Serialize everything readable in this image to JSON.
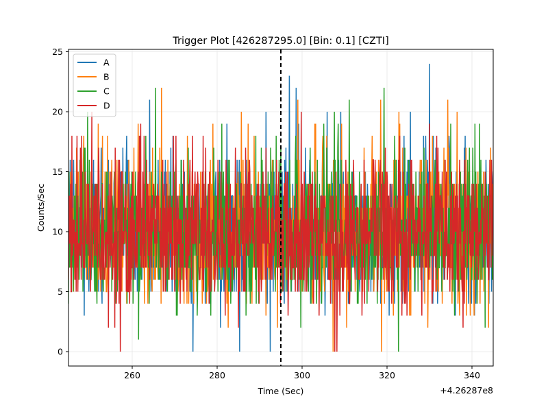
{
  "chart_data": {
    "type": "line",
    "title": "Trigger Plot [426287295.0] [Bin: 0.1] [CZTI]",
    "xlabel": "Time (Sec)",
    "ylabel": "Counts/Sec",
    "x_offset_label": "+4.26287e8",
    "xlim": [
      245,
      345
    ],
    "ylim": [
      -1.2,
      25.2
    ],
    "x_ticks": [
      260,
      280,
      300,
      320,
      340
    ],
    "y_ticks": [
      0,
      5,
      10,
      15,
      20,
      25
    ],
    "bin": 0.1,
    "grid": true,
    "legend_position": "top-left",
    "trigger_line_x": 295,
    "series_summary": "Four detector quadrant light curves sampled every 0.1 s, fluctuating around about 10 counts/sec (mostly between 4 and 17).",
    "series": [
      {
        "name": "A",
        "color": "#1f77b4",
        "mean": 10,
        "peaks": [
          {
            "x": 297.0,
            "y": 23
          },
          {
            "x": 330.0,
            "y": 24
          },
          {
            "x": 325.5,
            "y": 20
          }
        ],
        "dips": [
          {
            "x": 274.3,
            "y": 0
          },
          {
            "x": 285.3,
            "y": 0
          },
          {
            "x": 292.5,
            "y": 0
          }
        ]
      },
      {
        "name": "B",
        "color": "#ff7f0e",
        "mean": 10,
        "peaks": [
          {
            "x": 299.0,
            "y": 21
          },
          {
            "x": 318.5,
            "y": 21
          },
          {
            "x": 336.5,
            "y": 20
          }
        ],
        "dips": [
          {
            "x": 307.3,
            "y": 0
          },
          {
            "x": 318.7,
            "y": 0
          }
        ]
      },
      {
        "name": "C",
        "color": "#2ca02c",
        "mean": 10,
        "peaks": [
          {
            "x": 265.5,
            "y": 22
          },
          {
            "x": 249.5,
            "y": 20
          },
          {
            "x": 335.0,
            "y": 19
          }
        ],
        "dips": [
          {
            "x": 322.7,
            "y": 0
          },
          {
            "x": 261.5,
            "y": 1
          }
        ]
      },
      {
        "name": "D",
        "color": "#d62728",
        "mean": 10,
        "peaks": [
          {
            "x": 250.5,
            "y": 20
          },
          {
            "x": 262.0,
            "y": 19
          },
          {
            "x": 330.0,
            "y": 19
          }
        ],
        "dips": [
          {
            "x": 257.2,
            "y": 0
          },
          {
            "x": 307.7,
            "y": 0
          },
          {
            "x": 308.2,
            "y": 0
          }
        ]
      }
    ]
  }
}
